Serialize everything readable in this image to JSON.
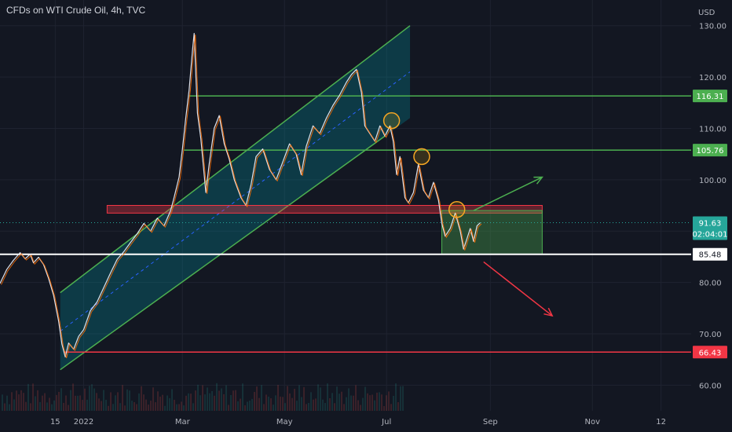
{
  "header": {
    "title": "CFDs on WTI Crude Oil, 4h, TVC"
  },
  "chart_data": {
    "type": "line",
    "title": "CFDs on WTI Crude Oil, 4h, TVC",
    "y_unit": "USD",
    "ylim": [
      55,
      135
    ],
    "y_ticks": [
      60,
      70,
      80,
      90,
      100,
      110,
      120,
      130
    ],
    "y_tick_labels": [
      "60.00",
      "70.00",
      "80.00",
      "90.00",
      "100.00",
      "110.00",
      "120.00",
      "130.00"
    ],
    "x_ticks": [
      {
        "date": "2021-12-15",
        "label": "15"
      },
      {
        "date": "2022-01-01",
        "label": "2022"
      },
      {
        "date": "2022-03-01",
        "label": "Mar"
      },
      {
        "date": "2022-05-01",
        "label": "May"
      },
      {
        "date": "2022-07-01",
        "label": "Jul"
      },
      {
        "date": "2022-09-01",
        "label": "Sep"
      },
      {
        "date": "2022-11-01",
        "label": "Nov"
      },
      {
        "date": "2022-12-12",
        "label": "12"
      }
    ],
    "xlim": [
      "2021-11-12",
      "2022-12-30"
    ],
    "grid": true,
    "series": [
      {
        "color": "#d1d4dc",
        "points": [
          [
            "2021-11-12",
            79.8
          ],
          [
            "2021-11-16",
            82.5
          ],
          [
            "2021-11-20",
            84.3
          ],
          [
            "2021-11-24",
            85.8
          ],
          [
            "2021-11-27",
            84.6
          ],
          [
            "2021-11-30",
            85.5
          ],
          [
            "2021-12-02",
            83.8
          ],
          [
            "2021-12-05",
            84.9
          ],
          [
            "2021-12-08",
            83.5
          ],
          [
            "2021-12-11",
            80.8
          ],
          [
            "2021-12-14",
            77.5
          ],
          [
            "2021-12-17",
            72.5
          ],
          [
            "2021-12-19",
            68.0
          ],
          [
            "2021-12-21",
            65.5
          ],
          [
            "2021-12-23",
            68.2
          ],
          [
            "2021-12-26",
            67.0
          ],
          [
            "2021-12-29",
            69.5
          ],
          [
            "2022-01-01",
            70.8
          ],
          [
            "2022-01-05",
            74.5
          ],
          [
            "2022-01-09",
            76.2
          ],
          [
            "2022-01-13",
            79.0
          ],
          [
            "2022-01-17",
            81.8
          ],
          [
            "2022-01-21",
            84.5
          ],
          [
            "2022-01-25",
            86.0
          ],
          [
            "2022-01-29",
            87.8
          ],
          [
            "2022-02-02",
            89.5
          ],
          [
            "2022-02-06",
            91.5
          ],
          [
            "2022-02-10",
            90.0
          ],
          [
            "2022-02-14",
            92.5
          ],
          [
            "2022-02-18",
            91.0
          ],
          [
            "2022-02-22",
            94.0
          ],
          [
            "2022-02-24",
            96.5
          ],
          [
            "2022-02-27",
            100.5
          ],
          [
            "2022-03-01",
            106.0
          ],
          [
            "2022-03-03",
            112.0
          ],
          [
            "2022-03-05",
            117.5
          ],
          [
            "2022-03-07",
            125.0
          ],
          [
            "2022-03-08",
            128.5
          ],
          [
            "2022-03-10",
            113.0
          ],
          [
            "2022-03-12",
            108.0
          ],
          [
            "2022-03-15",
            97.5
          ],
          [
            "2022-03-17",
            103.0
          ],
          [
            "2022-03-20",
            110.0
          ],
          [
            "2022-03-23",
            112.5
          ],
          [
            "2022-03-26",
            107.0
          ],
          [
            "2022-03-29",
            104.0
          ],
          [
            "2022-04-01",
            100.0
          ],
          [
            "2022-04-05",
            96.5
          ],
          [
            "2022-04-08",
            95.0
          ],
          [
            "2022-04-11",
            99.0
          ],
          [
            "2022-04-14",
            104.5
          ],
          [
            "2022-04-18",
            106.0
          ],
          [
            "2022-04-22",
            102.0
          ],
          [
            "2022-04-26",
            100.0
          ],
          [
            "2022-04-30",
            103.5
          ],
          [
            "2022-05-04",
            107.0
          ],
          [
            "2022-05-08",
            105.0
          ],
          [
            "2022-05-11",
            101.0
          ],
          [
            "2022-05-14",
            106.5
          ],
          [
            "2022-05-18",
            110.5
          ],
          [
            "2022-05-22",
            109.0
          ],
          [
            "2022-05-26",
            112.0
          ],
          [
            "2022-05-30",
            114.5
          ],
          [
            "2022-06-03",
            116.5
          ],
          [
            "2022-06-07",
            119.0
          ],
          [
            "2022-06-10",
            120.5
          ],
          [
            "2022-06-13",
            121.5
          ],
          [
            "2022-06-16",
            117.0
          ],
          [
            "2022-06-18",
            110.5
          ],
          [
            "2022-06-21",
            109.0
          ],
          [
            "2022-06-24",
            107.5
          ],
          [
            "2022-06-27",
            110.5
          ],
          [
            "2022-06-30",
            108.5
          ],
          [
            "2022-07-03",
            110.5
          ],
          [
            "2022-07-05",
            107.5
          ],
          [
            "2022-07-07",
            101.0
          ],
          [
            "2022-07-09",
            104.5
          ],
          [
            "2022-07-12",
            96.5
          ],
          [
            "2022-07-14",
            95.5
          ],
          [
            "2022-07-17",
            97.5
          ],
          [
            "2022-07-20",
            103.0
          ],
          [
            "2022-07-23",
            98.0
          ],
          [
            "2022-07-26",
            96.5
          ],
          [
            "2022-07-29",
            99.5
          ],
          [
            "2022-08-01",
            96.0
          ],
          [
            "2022-08-03",
            91.5
          ],
          [
            "2022-08-05",
            89.0
          ],
          [
            "2022-08-08",
            90.5
          ],
          [
            "2022-08-11",
            93.5
          ],
          [
            "2022-08-14",
            90.0
          ],
          [
            "2022-08-16",
            86.5
          ],
          [
            "2022-08-18",
            88.5
          ],
          [
            "2022-08-20",
            90.5
          ],
          [
            "2022-08-22",
            88.0
          ],
          [
            "2022-08-24",
            91.0
          ],
          [
            "2022-08-26",
            91.63
          ]
        ]
      }
    ],
    "last_price": {
      "label": "91.63",
      "countdown": "02:04:01",
      "color": "#26a69a"
    },
    "price_levels": [
      {
        "value": 116.31,
        "label": "116.31",
        "color": "#4caf50",
        "from": "2022-03-05"
      },
      {
        "value": 105.76,
        "label": "105.76",
        "color": "#4caf50",
        "from": "2022-03-02"
      },
      {
        "value": 85.48,
        "label": "85.48",
        "color": "#ffffff",
        "from": "2021-11-12"
      },
      {
        "value": 66.43,
        "label": "66.43",
        "color": "#f23645",
        "from": "2021-12-20"
      }
    ],
    "annotations": {
      "channel": {
        "color": "#4caf50",
        "fill": "rgba(0,151,167,0.28)",
        "lower_start": [
          "2021-12-18",
          63.0
        ],
        "lower_end": [
          "2022-06-30",
          108.5
        ],
        "upper_start": [
          "2021-12-18",
          78.0
        ],
        "upper_end": [
          "2022-07-15",
          130.0
        ]
      },
      "resistance_zone": {
        "color": "#f23645",
        "from": "2022-01-15",
        "to": "2022-10-02",
        "top": 95.0,
        "bottom": 93.5
      },
      "consolidation_box": {
        "color": "#4caf50",
        "from": "2022-08-03",
        "to": "2022-10-02",
        "top": 94.0,
        "bottom": 85.48
      },
      "circles": [
        {
          "date": "2022-07-04",
          "value": 111.5
        },
        {
          "date": "2022-07-22",
          "value": 104.5
        },
        {
          "date": "2022-08-12",
          "value": 94.2
        }
      ],
      "arrows": [
        {
          "color": "#4caf50",
          "from": [
            "2022-08-22",
            94.0
          ],
          "to": [
            "2022-10-02",
            100.5
          ]
        },
        {
          "color": "#f23645",
          "from": [
            "2022-08-28",
            84.0
          ],
          "to": [
            "2022-10-08",
            73.5
          ]
        }
      ]
    }
  }
}
